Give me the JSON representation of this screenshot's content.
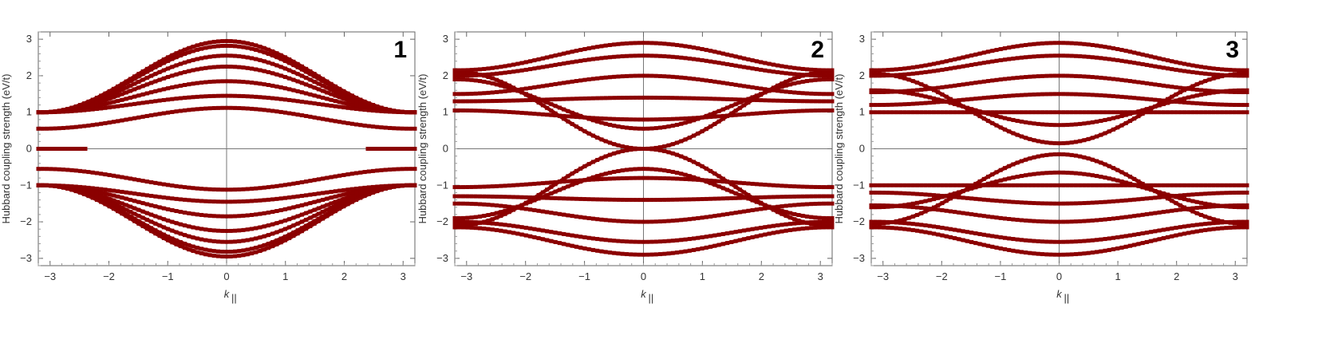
{
  "chart_data": [
    {
      "type": "scatter",
      "panel_label": "1",
      "ylabel": "Hubbard coupling strength (eV/t)",
      "xlabel_main": "k",
      "xlabel_sub": "||",
      "xlim": [
        -3.2,
        3.2
      ],
      "ylim": [
        -3.2,
        3.2
      ],
      "xticks": [
        -3,
        -2,
        -1,
        0,
        1,
        2,
        3
      ],
      "yticks": [
        -3,
        -2,
        -1,
        0,
        1,
        2,
        3
      ],
      "marker_color": "#8b0000",
      "band_pairs": [
        {
          "edge": 1.0,
          "center": 2.95
        },
        {
          "edge": 1.0,
          "center": 2.82
        },
        {
          "edge": 1.0,
          "center": 2.55
        },
        {
          "edge": 1.0,
          "center": 2.25
        },
        {
          "edge": 1.0,
          "center": 1.85
        },
        {
          "edge": 1.0,
          "center": 1.45
        },
        {
          "edge": 0.55,
          "center": 1.12
        }
      ],
      "edge_state": {
        "y": 0.0,
        "kmin": 2.4
      }
    },
    {
      "type": "scatter",
      "panel_label": "2",
      "ylabel": "Hubbard coupling strength (eV/t)",
      "xlabel_main": "k",
      "xlabel_sub": "||",
      "xlim": [
        -3.2,
        3.2
      ],
      "ylim": [
        -3.2,
        3.2
      ],
      "xticks": [
        -3,
        -2,
        -1,
        0,
        1,
        2,
        3
      ],
      "yticks": [
        -3,
        -2,
        -1,
        0,
        1,
        2,
        3
      ],
      "marker_color": "#8b0000",
      "band_pairs": [
        {
          "edge": 2.15,
          "center": 2.9
        },
        {
          "edge": 2.0,
          "center": 2.55
        },
        {
          "edge": 1.5,
          "center": 2.0
        },
        {
          "edge": 1.3,
          "center": 1.4
        },
        {
          "edge": 1.05,
          "center": 0.8
        },
        {
          "edge": 1.9,
          "center": 0.55
        },
        {
          "edge": 2.1,
          "center": 0.0
        }
      ]
    },
    {
      "type": "scatter",
      "panel_label": "3",
      "ylabel": "Hubbard coupling strength (eV/t)",
      "xlabel_main": "k",
      "xlabel_sub": "||",
      "xlim": [
        -3.2,
        3.2
      ],
      "ylim": [
        -3.2,
        3.2
      ],
      "xticks": [
        -3,
        -2,
        -1,
        0,
        1,
        2,
        3
      ],
      "yticks": [
        -3,
        -2,
        -1,
        0,
        1,
        2,
        3
      ],
      "marker_color": "#8b0000",
      "band_pairs": [
        {
          "edge": 2.15,
          "center": 2.9
        },
        {
          "edge": 2.0,
          "center": 2.55
        },
        {
          "edge": 1.55,
          "center": 2.0
        },
        {
          "edge": 1.2,
          "center": 1.5
        },
        {
          "edge": 1.0,
          "center": 1.0
        },
        {
          "edge": 1.6,
          "center": 0.65
        },
        {
          "edge": 2.05,
          "center": 0.15
        }
      ]
    }
  ]
}
